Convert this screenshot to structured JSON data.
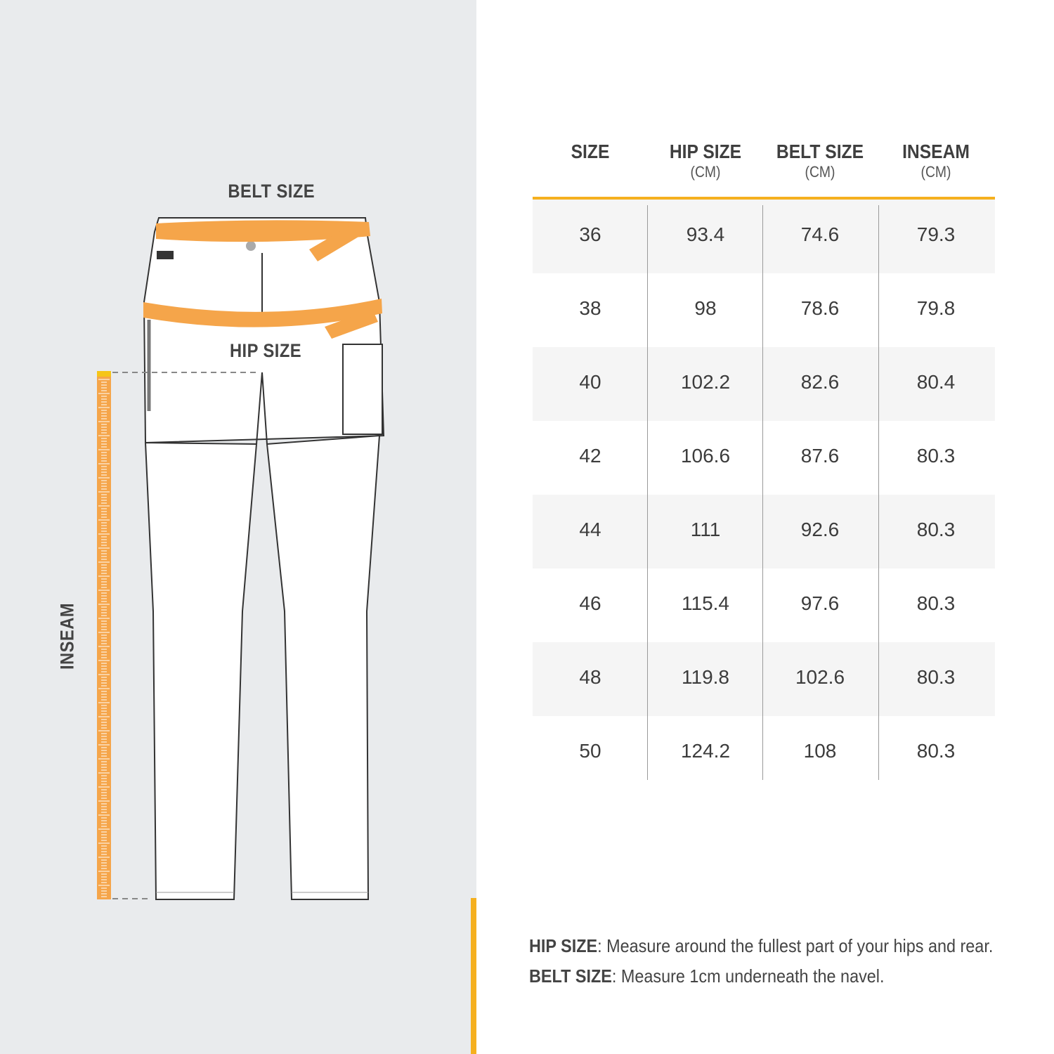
{
  "diagram": {
    "belt_label": "BELT SIZE",
    "hip_label": "HIP SIZE",
    "inseam_label": "INSEAM"
  },
  "table": {
    "columns": [
      {
        "title": "SIZE",
        "unit": ""
      },
      {
        "title": "HIP SIZE",
        "unit": "(CM)"
      },
      {
        "title": "BELT SIZE",
        "unit": "(CM)"
      },
      {
        "title": "INSEAM",
        "unit": "(CM)"
      }
    ],
    "rows": [
      [
        "36",
        "93.4",
        "74.6",
        "79.3"
      ],
      [
        "38",
        "98",
        "78.6",
        "79.8"
      ],
      [
        "40",
        "102.2",
        "82.6",
        "80.4"
      ],
      [
        "42",
        "106.6",
        "87.6",
        "80.3"
      ],
      [
        "44",
        "111",
        "92.6",
        "80.3"
      ],
      [
        "46",
        "115.4",
        "97.6",
        "80.3"
      ],
      [
        "48",
        "119.8",
        "102.6",
        "80.3"
      ],
      [
        "50",
        "124.2",
        "108",
        "80.3"
      ]
    ]
  },
  "notes": [
    {
      "term": "HIP SIZE",
      "text": ": Measure around the fullest part of your hips and rear."
    },
    {
      "term": "BELT SIZE",
      "text": ": Measure 1cm underneath the navel."
    }
  ],
  "colors": {
    "accent": "#f5b01f",
    "tape": "#f5a54a",
    "panel": "#e9ebed",
    "row_alt": "#f5f5f5"
  }
}
